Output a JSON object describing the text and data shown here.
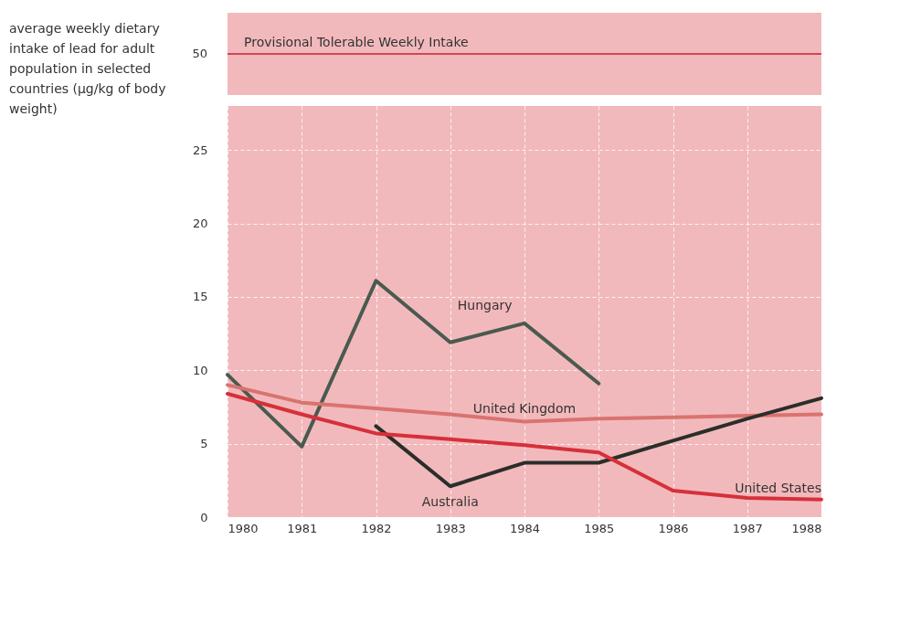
{
  "chart_data": [
    {
      "type": "other",
      "title": "average weekly dietary intake of lead for adult population in selected countries (µg/kg of body weight)",
      "annotations": [
        "50",
        "Provisional Tolerable Weekly Intake"
      ]
    },
    {
      "type": "line",
      "xlim": [
        1980,
        1988
      ],
      "ylim": [
        0,
        28
      ],
      "xticks": [
        1980,
        1981,
        1982,
        1983,
        1984,
        1985,
        1986,
        1987,
        1988
      ],
      "yticks": [
        0,
        5,
        10,
        15,
        20,
        25
      ],
      "grid": true,
      "line_style": "solid",
      "series": [
        {
          "name": "Hungary",
          "color": "#4a5a50",
          "x": [
            1980,
            1981,
            1982,
            1983,
            1984,
            1985
          ],
          "values": [
            9.7,
            4.8,
            16.1,
            11.9,
            13.2,
            9.1
          ]
        },
        {
          "name": "United Kingdom",
          "color": "#d9736f",
          "x": [
            1980,
            1981,
            1982,
            1983,
            1984,
            1985,
            1986,
            1987,
            1988
          ],
          "values": [
            9.0,
            7.8,
            7.4,
            7.0,
            6.5,
            6.7,
            6.8,
            6.9,
            7.0
          ]
        },
        {
          "name": "Australia",
          "color": "#2a2e2a",
          "x": [
            1982,
            1983,
            1984,
            1985,
            1986,
            1987,
            1988
          ],
          "values": [
            6.2,
            2.1,
            3.7,
            3.7,
            5.2,
            6.7,
            8.1
          ]
        },
        {
          "name": "United States",
          "color": "#d6303a",
          "x": [
            1980,
            1981,
            1982,
            1983,
            1984,
            1985,
            1986,
            1987,
            1988
          ],
          "values": [
            8.4,
            7.0,
            5.7,
            5.3,
            4.9,
            4.4,
            1.8,
            1.3,
            1.2
          ]
        }
      ]
    }
  ]
}
